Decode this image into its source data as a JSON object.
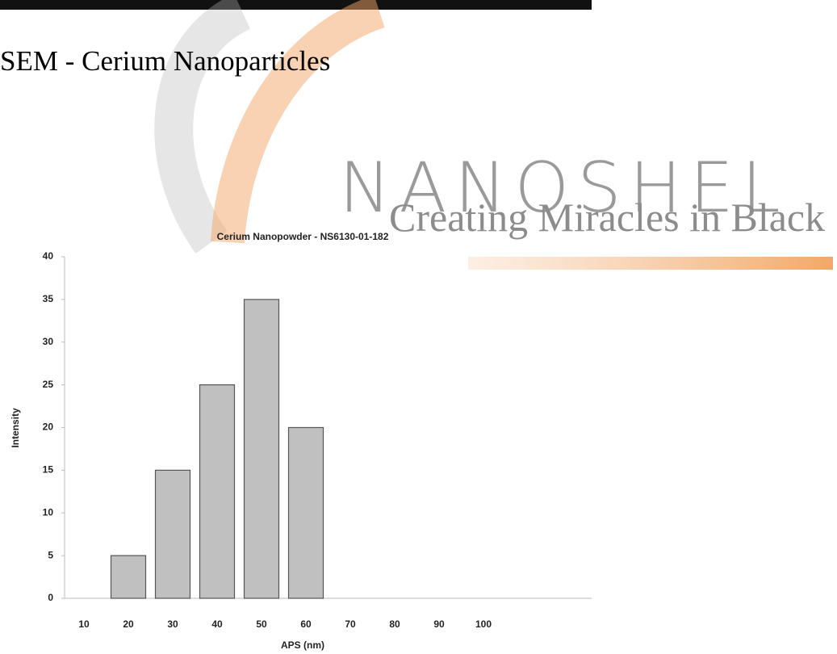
{
  "heading": "SEM - Cerium Nanoparticles",
  "watermark": {
    "brand": "NANOSHEL",
    "tagline": "Creating Miracles in Black"
  },
  "chart_data": {
    "type": "bar",
    "title": "Cerium Nanopowder - NS6130-01-182",
    "x_label": "APS (nm)",
    "y_label": "Intensity",
    "categories": [
      "10",
      "20",
      "30",
      "40",
      "50",
      "60",
      "70",
      "80",
      "90",
      "100"
    ],
    "values": [
      0,
      5,
      15,
      25,
      35,
      20,
      0,
      0,
      0,
      0
    ],
    "color": "#c0c0c0",
    "ylim": [
      0,
      40
    ],
    "yticks": [
      0,
      5,
      10,
      15,
      20,
      25,
      30,
      35,
      40
    ],
    "grid": false
  }
}
